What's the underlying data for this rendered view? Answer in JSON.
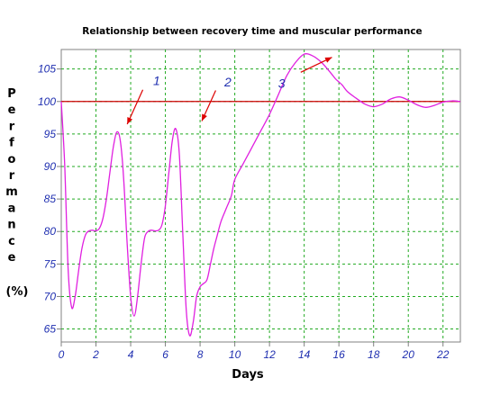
{
  "chart_data": {
    "type": "line",
    "title": "Relationship between recovery time and muscular performance",
    "xlabel": "Days",
    "ylabel_letters": [
      "P",
      "e",
      "r",
      "f",
      "o",
      "r",
      "m",
      "a",
      "n",
      "c",
      "e"
    ],
    "ylabel_unit": "(%)",
    "xlim": [
      0,
      23
    ],
    "ylim": [
      63,
      108
    ],
    "x_ticks": [
      0,
      2,
      4,
      6,
      8,
      10,
      12,
      14,
      16,
      18,
      20,
      22
    ],
    "y_ticks": [
      65,
      70,
      75,
      80,
      85,
      90,
      95,
      100,
      105
    ],
    "grid": true,
    "reference_line": {
      "y": 100,
      "color": "#cc0000"
    },
    "series": [
      {
        "color": "#e020e0",
        "x": [
          0,
          0.2,
          0.4,
          0.6,
          0.8,
          1.0,
          1.2,
          1.4,
          1.6,
          1.8,
          2.0,
          2.2,
          2.4,
          2.6,
          2.8,
          3.0,
          3.2,
          3.4,
          3.6,
          3.8,
          4.0,
          4.2,
          4.4,
          4.6,
          4.8,
          5.0,
          5.2,
          5.4,
          5.6,
          5.8,
          6.0,
          6.2,
          6.4,
          6.6,
          6.8,
          7.0,
          7.2,
          7.4,
          7.6,
          7.8,
          8.0,
          8.2,
          8.4,
          8.6,
          8.8,
          9.0,
          9.2,
          9.5,
          9.8,
          10.0,
          10.5,
          11.0,
          11.5,
          12.0,
          12.5,
          13.0,
          13.5,
          14.0,
          14.5,
          15.0,
          15.5,
          15.8,
          16.0,
          16.2,
          16.5,
          17.0,
          17.5,
          18.0,
          18.5,
          19.0,
          19.5,
          20.0,
          20.5,
          21.0,
          21.5,
          22.0,
          22.5,
          23.0
        ],
        "y": [
          100,
          90,
          74,
          68.3,
          70,
          74,
          77.5,
          79.5,
          80.1,
          80.2,
          80.1,
          80.5,
          82,
          85,
          89,
          93,
          95.3,
          94,
          88,
          78,
          70,
          67,
          70,
          75,
          79,
          80,
          80.2,
          80.1,
          80.2,
          81,
          84,
          89,
          94,
          95.8,
          92,
          80,
          68,
          64,
          66,
          70,
          71.5,
          72,
          72.6,
          75,
          77.5,
          79.5,
          81.5,
          83.5,
          85.5,
          88,
          90.5,
          93,
          95.5,
          98,
          101,
          104,
          106,
          107.3,
          107,
          106,
          104.5,
          103.5,
          103,
          102.5,
          101.5,
          100.5,
          99.6,
          99.2,
          99.6,
          100.4,
          100.7,
          100.2,
          99.5,
          99.1,
          99.4,
          99.9,
          100.1,
          100
        ]
      }
    ],
    "annotations": [
      {
        "label": "1",
        "text_x": 5.5,
        "text_y": 103.2,
        "arrow_from": [
          4.7,
          101.8
        ],
        "arrow_to": [
          3.8,
          96.5
        ]
      },
      {
        "label": "2",
        "text_x": 9.6,
        "text_y": 103.0,
        "arrow_from": [
          8.9,
          101.7
        ],
        "arrow_to": [
          8.1,
          97.0
        ]
      },
      {
        "label": "3",
        "text_x": 12.7,
        "text_y": 102.8,
        "arrow_from": [
          13.8,
          104.5
        ],
        "arrow_to": [
          15.6,
          106.8
        ]
      }
    ],
    "grid_color": "#22aa22",
    "axis_color": "#808080",
    "annotation_arrow_color": "#dd0000"
  }
}
